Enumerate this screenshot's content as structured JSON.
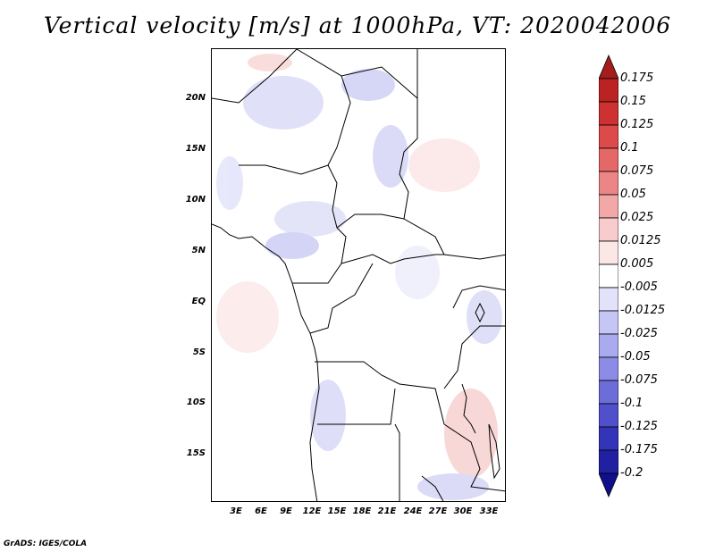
{
  "title": "Vertical velocity [m/s] at 1000hPa, VT: 2020042006",
  "credit": "GrADS: IGES/COLA",
  "lat_labels": [
    "20N",
    "15N",
    "10N",
    "5N",
    "EQ",
    "5S",
    "10S",
    "15S"
  ],
  "lon_labels": [
    "3E",
    "6E",
    "9E",
    "12E",
    "15E",
    "18E",
    "21E",
    "24E",
    "27E",
    "30E",
    "33E"
  ],
  "colorbar": {
    "labels": [
      "0.175",
      "0.15",
      "0.125",
      "0.1",
      "0.075",
      "0.05",
      "0.025",
      "0.0125",
      "0.005",
      "-0.005",
      "-0.0125",
      "-0.025",
      "-0.05",
      "-0.075",
      "-0.1",
      "-0.125",
      "-0.175",
      "-0.2"
    ],
    "colors": [
      "#a51c1c",
      "#bb2323",
      "#cd3131",
      "#dc4a4a",
      "#e56868",
      "#ec8686",
      "#f3a8a8",
      "#f8cccc",
      "#fce7e7",
      "#ffffff",
      "#e2e2fb",
      "#c6c6f6",
      "#aaaaef",
      "#8c8ce6",
      "#6d6dda",
      "#5050cc",
      "#3434b8",
      "#2020a2",
      "#10108a"
    ]
  }
}
